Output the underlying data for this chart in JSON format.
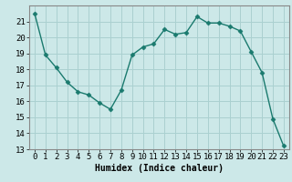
{
  "x": [
    0,
    1,
    2,
    3,
    4,
    5,
    6,
    7,
    8,
    9,
    10,
    11,
    12,
    13,
    14,
    15,
    16,
    17,
    18,
    19,
    20,
    21,
    22,
    23
  ],
  "y": [
    21.5,
    18.9,
    18.1,
    17.2,
    16.6,
    16.4,
    15.9,
    15.5,
    16.7,
    18.9,
    19.4,
    19.6,
    20.5,
    20.2,
    20.3,
    21.3,
    20.9,
    20.9,
    20.7,
    20.4,
    19.1,
    17.8,
    14.9,
    13.2
  ],
  "line_color": "#1a7a6e",
  "marker": "D",
  "marker_size": 2.5,
  "bg_color": "#cce8e8",
  "grid_color": "#aad0d0",
  "xlabel": "Humidex (Indice chaleur)",
  "xlabel_fontsize": 7,
  "tick_fontsize": 6.5,
  "ylim": [
    13,
    22
  ],
  "xlim": [
    -0.5,
    23.5
  ],
  "yticks": [
    13,
    14,
    15,
    16,
    17,
    18,
    19,
    20,
    21
  ],
  "xticks": [
    0,
    1,
    2,
    3,
    4,
    5,
    6,
    7,
    8,
    9,
    10,
    11,
    12,
    13,
    14,
    15,
    16,
    17,
    18,
    19,
    20,
    21,
    22,
    23
  ]
}
